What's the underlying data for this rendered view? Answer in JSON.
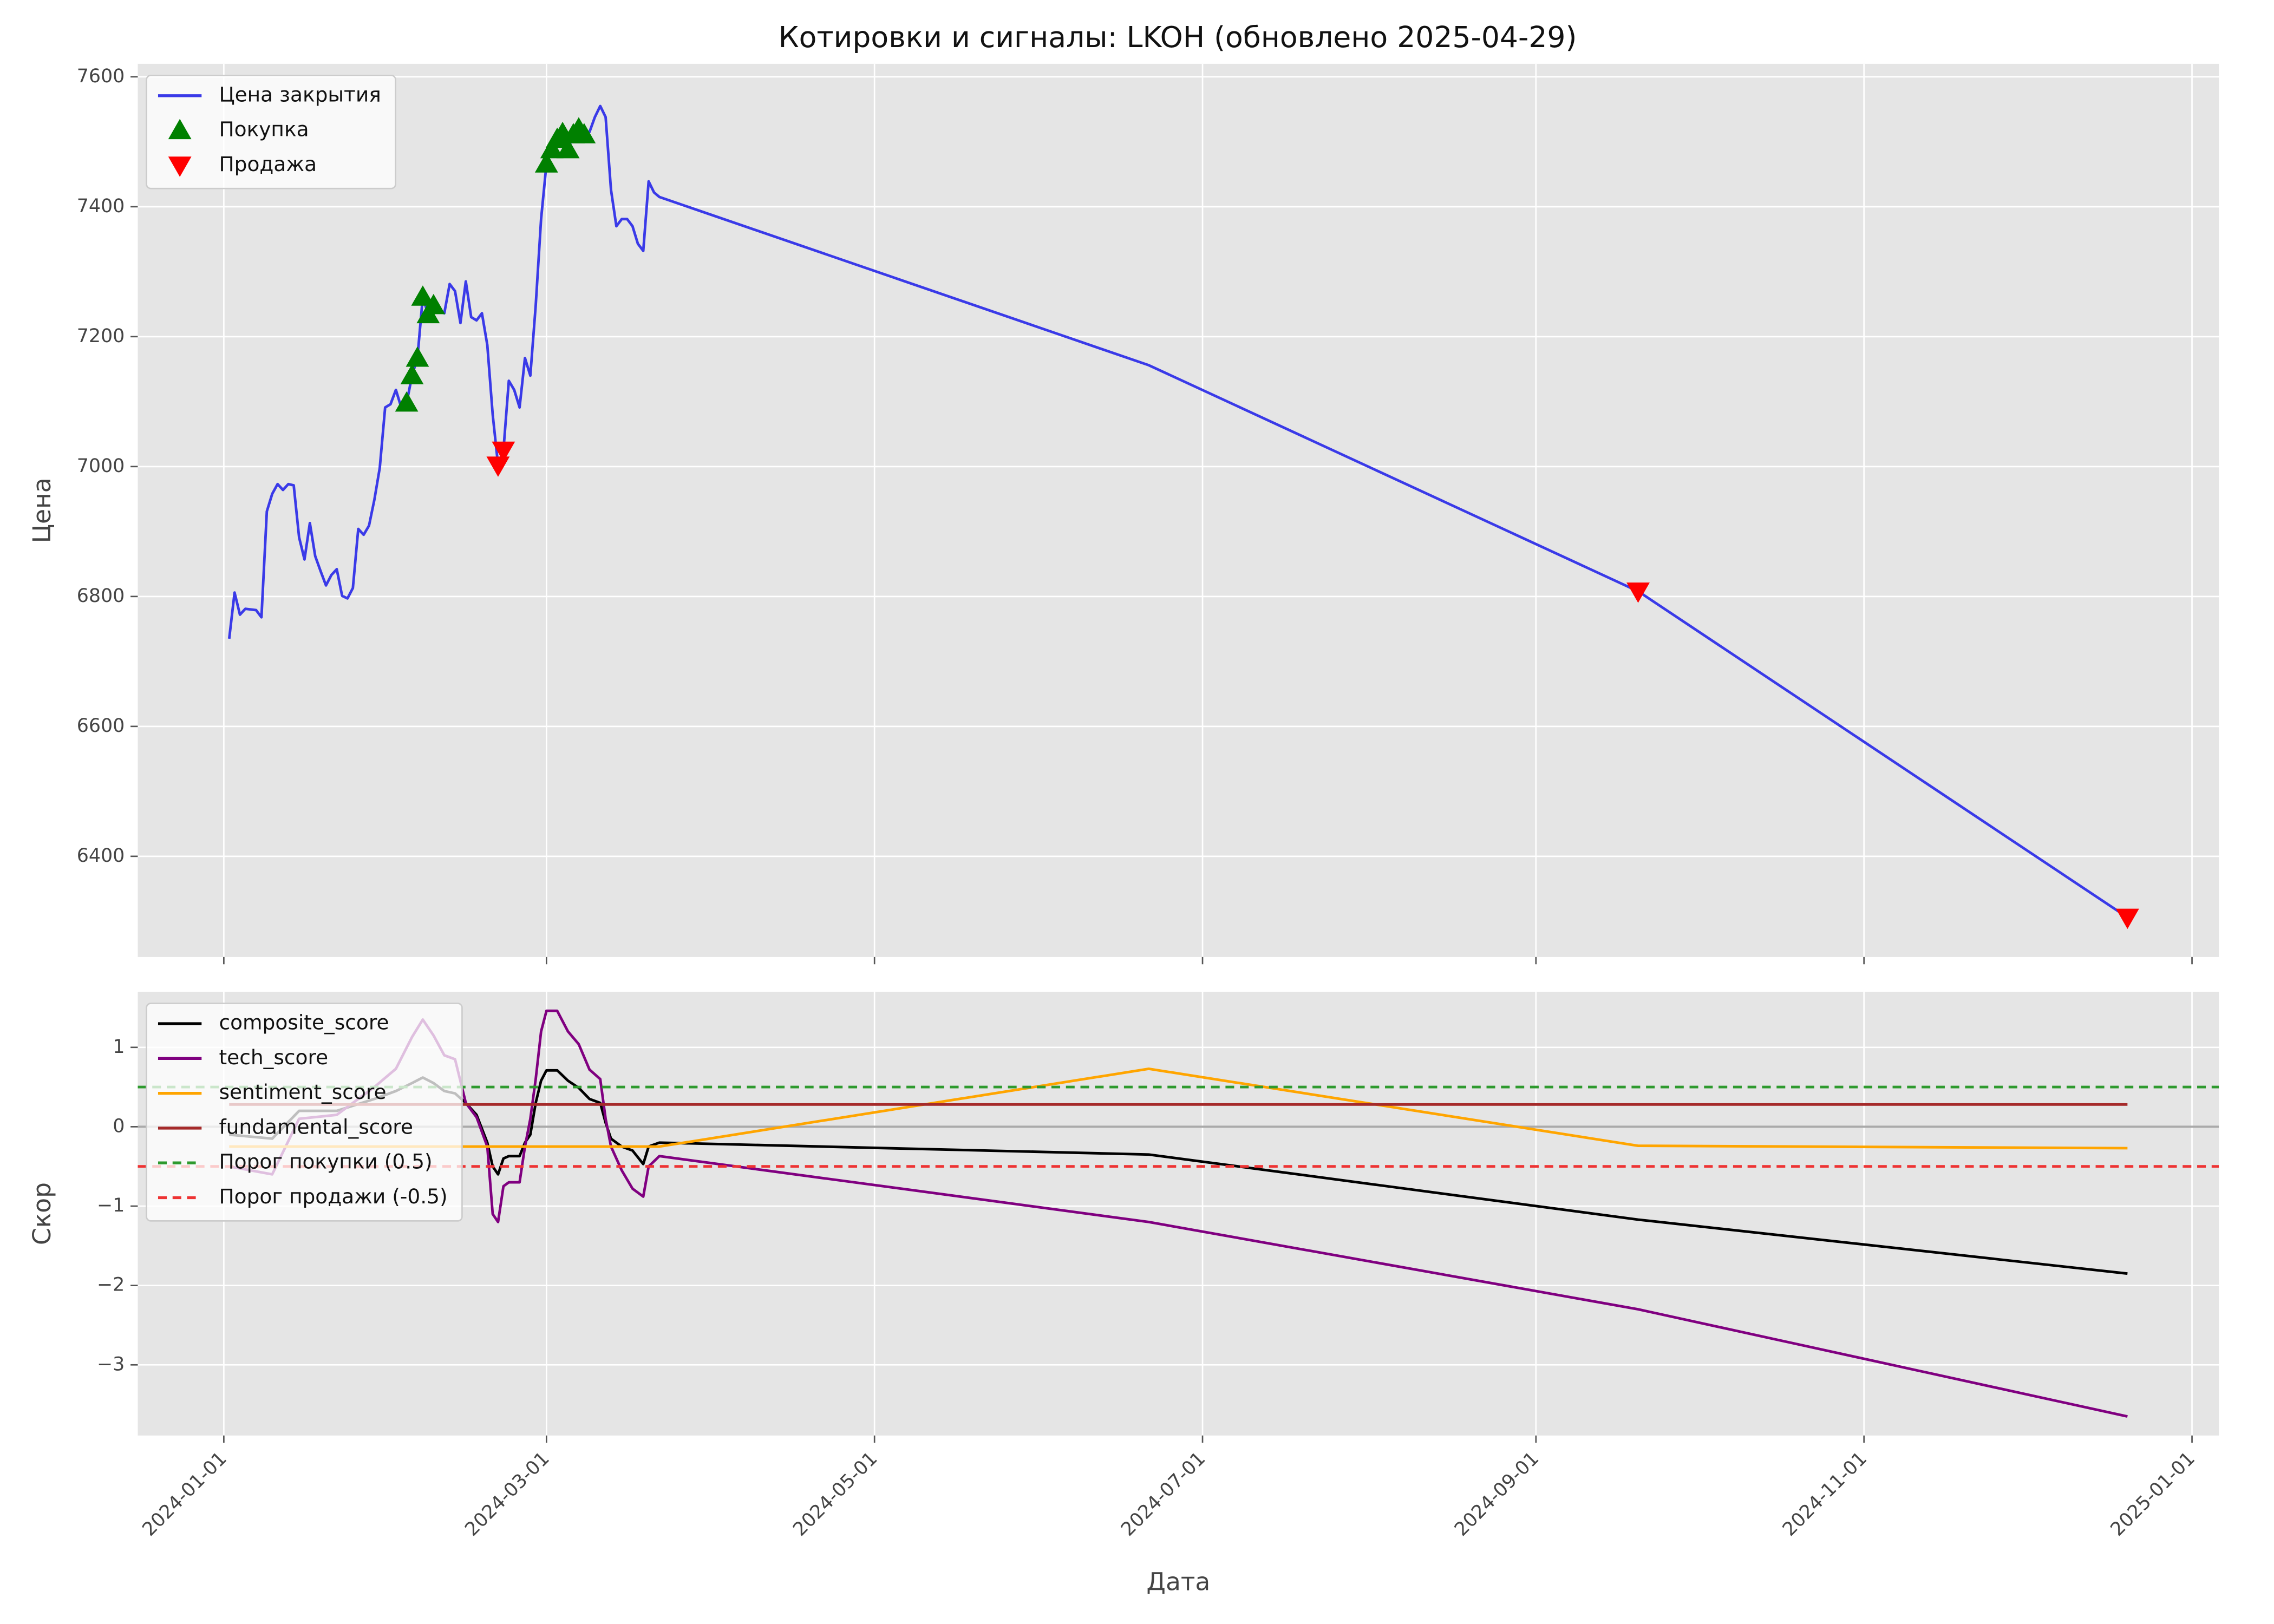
{
  "chart_data": [
    {
      "type": "line",
      "title": "Котировки и сигналы: LKOH (обновлено 2025-04-29)",
      "ylabel": "Цена",
      "x": [
        "2024-01-02",
        "2024-01-03",
        "2024-01-04",
        "2024-01-05",
        "2024-01-07",
        "2024-01-08",
        "2024-01-09",
        "2024-01-10",
        "2024-01-11",
        "2024-01-12",
        "2024-01-13",
        "2024-01-14",
        "2024-01-15",
        "2024-01-16",
        "2024-01-17",
        "2024-01-18",
        "2024-01-19",
        "2024-01-20",
        "2024-01-21",
        "2024-01-22",
        "2024-01-23",
        "2024-01-24",
        "2024-01-25",
        "2024-01-26",
        "2024-01-27",
        "2024-01-28",
        "2024-01-29",
        "2024-01-30",
        "2024-01-31",
        "2024-02-01",
        "2024-02-02",
        "2024-02-03",
        "2024-02-04",
        "2024-02-05",
        "2024-02-06",
        "2024-02-07",
        "2024-02-08",
        "2024-02-09",
        "2024-02-10",
        "2024-02-11",
        "2024-02-12",
        "2024-02-13",
        "2024-02-14",
        "2024-02-15",
        "2024-02-16",
        "2024-02-17",
        "2024-02-18",
        "2024-02-19",
        "2024-02-20",
        "2024-02-21",
        "2024-02-22",
        "2024-02-23",
        "2024-02-24",
        "2024-02-25",
        "2024-02-26",
        "2024-02-27",
        "2024-02-28",
        "2024-02-29",
        "2024-03-01",
        "2024-03-02",
        "2024-03-03",
        "2024-03-04",
        "2024-03-05",
        "2024-03-06",
        "2024-03-07",
        "2024-03-08",
        "2024-03-09",
        "2024-03-10",
        "2024-03-11",
        "2024-03-12",
        "2024-03-13",
        "2024-03-14",
        "2024-03-15",
        "2024-03-16",
        "2024-03-17",
        "2024-03-18",
        "2024-03-19",
        "2024-03-20",
        "2024-03-21",
        "2024-03-22",
        "2024-06-21",
        "2024-09-20",
        "2024-12-20"
      ],
      "series": [
        {
          "name": "Цена закрытия",
          "color": "#3a3ae8",
          "values": [
            6735,
            6806,
            6772,
            6781,
            6779,
            6768,
            6931,
            6958,
            6973,
            6964,
            6973,
            6971,
            6891,
            6857,
            6913,
            6862,
            6839,
            6817,
            6833,
            6842,
            6801,
            6797,
            6813,
            6904,
            6895,
            6909,
            6949,
            6998,
            7091,
            7096,
            7118,
            7091,
            7098,
            7140,
            7167,
            7261,
            7234,
            7248,
            7239,
            7236,
            7281,
            7270,
            7221,
            7285,
            7230,
            7225,
            7236,
            7187,
            7080,
            7002,
            7025,
            7132,
            7118,
            7091,
            7167,
            7140,
            7248,
            7381,
            7466,
            7488,
            7504,
            7513,
            7488,
            7511,
            7520,
            7511,
            7515,
            7538,
            7555,
            7538,
            7426,
            7370,
            7381,
            7381,
            7370,
            7343,
            7332,
            7439,
            7422,
            7415,
            7156,
            6808,
            6306
          ]
        },
        {
          "name": "Покупка",
          "color": "#008000",
          "marker": "triangle-up",
          "x": [
            "2024-02-04",
            "2024-02-05",
            "2024-02-06",
            "2024-02-07",
            "2024-02-08",
            "2024-02-09",
            "2024-03-01",
            "2024-03-02",
            "2024-03-03",
            "2024-03-04",
            "2024-03-05",
            "2024-03-06",
            "2024-03-07",
            "2024-03-08"
          ],
          "values": [
            7098,
            7140,
            7167,
            7261,
            7234,
            7248,
            7466,
            7488,
            7504,
            7513,
            7488,
            7511,
            7520,
            7511
          ]
        },
        {
          "name": "Продажа",
          "color": "#ff0000",
          "marker": "triangle-down",
          "x": [
            "2024-02-21",
            "2024-02-22",
            "2024-09-20",
            "2024-12-20"
          ],
          "values": [
            7002,
            7025,
            6808,
            6306
          ]
        }
      ],
      "xlim": [
        "2023-12-16",
        "2025-01-06"
      ],
      "ylim": [
        6245,
        7620
      ],
      "yticks": [
        6400,
        6600,
        6800,
        7000,
        7200,
        7400,
        7600
      ],
      "grid": true,
      "legend": "upper left"
    },
    {
      "type": "line",
      "ylabel": "Скор",
      "xlabel": "Дата",
      "x": [
        "2024-01-02",
        "2024-01-10",
        "2024-01-15",
        "2024-01-22",
        "2024-01-29",
        "2024-02-02",
        "2024-02-05",
        "2024-02-07",
        "2024-02-09",
        "2024-02-11",
        "2024-02-13",
        "2024-02-15",
        "2024-02-17",
        "2024-02-19",
        "2024-02-20",
        "2024-02-21",
        "2024-02-22",
        "2024-02-23",
        "2024-02-25",
        "2024-02-26",
        "2024-02-27",
        "2024-02-28",
        "2024-02-29",
        "2024-03-01",
        "2024-03-03",
        "2024-03-05",
        "2024-03-07",
        "2024-03-09",
        "2024-03-11",
        "2024-03-12",
        "2024-03-13",
        "2024-03-15",
        "2024-03-17",
        "2024-03-19",
        "2024-03-20",
        "2024-03-22",
        "2024-06-21",
        "2024-09-20",
        "2024-12-20"
      ],
      "series": [
        {
          "name": "composite_score",
          "color": "#000000",
          "values": [
            -0.1,
            -0.15,
            0.2,
            0.2,
            0.35,
            0.45,
            0.55,
            0.62,
            0.55,
            0.45,
            0.42,
            0.3,
            0.15,
            -0.2,
            -0.5,
            -0.6,
            -0.4,
            -0.37,
            -0.37,
            -0.2,
            -0.1,
            0.3,
            0.58,
            0.71,
            0.71,
            0.58,
            0.49,
            0.35,
            0.3,
            0.05,
            -0.15,
            -0.25,
            -0.3,
            -0.47,
            -0.25,
            -0.2,
            -0.35,
            -1.17,
            -1.85
          ]
        },
        {
          "name": "tech_score",
          "color": "#800080",
          "values": [
            -0.5,
            -0.6,
            0.1,
            0.15,
            0.5,
            0.73,
            1.13,
            1.35,
            1.15,
            0.9,
            0.85,
            0.3,
            0.12,
            -0.25,
            -1.1,
            -1.2,
            -0.75,
            -0.7,
            -0.7,
            -0.25,
            0.1,
            0.6,
            1.2,
            1.46,
            1.46,
            1.2,
            1.04,
            0.72,
            0.6,
            0.1,
            -0.25,
            -0.55,
            -0.78,
            -0.88,
            -0.5,
            -0.37,
            -1.2,
            -2.3,
            -3.65
          ]
        },
        {
          "name": "sentiment_score",
          "color": "#ffa500",
          "values": [
            -0.25,
            -0.25,
            -0.25,
            -0.25,
            -0.25,
            -0.25,
            -0.25,
            -0.25,
            -0.25,
            -0.25,
            -0.25,
            -0.25,
            -0.25,
            -0.25,
            -0.25,
            -0.25,
            -0.25,
            -0.25,
            -0.25,
            -0.25,
            -0.25,
            -0.25,
            -0.25,
            -0.25,
            -0.25,
            -0.25,
            -0.25,
            -0.25,
            -0.25,
            -0.25,
            -0.25,
            -0.25,
            -0.25,
            -0.25,
            -0.25,
            -0.25,
            0.73,
            -0.24,
            -0.27
          ]
        },
        {
          "name": "fundamental_score",
          "color": "#a52a2a",
          "values": [
            0.28,
            0.28,
            0.28,
            0.28,
            0.28,
            0.28,
            0.28,
            0.28,
            0.28,
            0.28,
            0.28,
            0.28,
            0.28,
            0.28,
            0.28,
            0.28,
            0.28,
            0.28,
            0.28,
            0.28,
            0.28,
            0.28,
            0.28,
            0.28,
            0.28,
            0.28,
            0.28,
            0.28,
            0.28,
            0.28,
            0.28,
            0.28,
            0.28,
            0.28,
            0.28,
            0.28,
            0.28,
            0.28,
            0.28
          ]
        },
        {
          "name": "Порог покупки (0.5)",
          "color": "#2e9a2e",
          "hline": 0.5
        },
        {
          "name": "Порог продажи (-0.5)",
          "color": "#ee3333",
          "hline": -0.5
        }
      ],
      "zero_line": 0,
      "xlim": [
        "2023-12-16",
        "2025-01-06"
      ],
      "ylim": [
        -3.89,
        1.7
      ],
      "yticks": [
        {
          "value": -3,
          "label": "−3"
        },
        {
          "value": -2,
          "label": "−2"
        },
        {
          "value": -1,
          "label": "−1"
        },
        0,
        1
      ],
      "xticks": [
        "2024-01-01",
        "2024-03-01",
        "2024-05-01",
        "2024-07-01",
        "2024-09-01",
        "2024-11-01",
        "2025-01-01"
      ],
      "grid": true,
      "legend": "upper left"
    }
  ]
}
